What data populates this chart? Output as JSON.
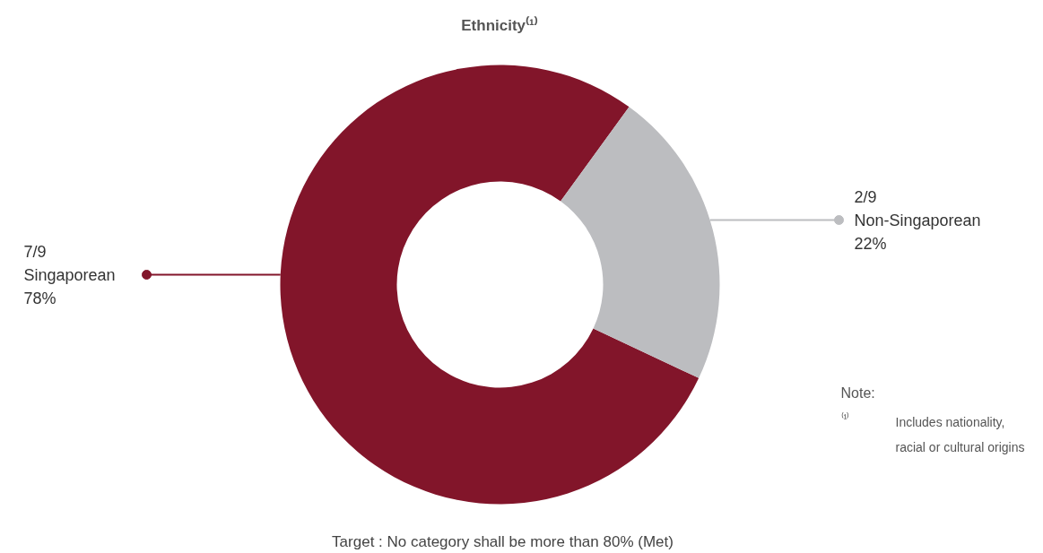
{
  "chart_data": {
    "type": "donut",
    "title": "Ethnicity⁽¹⁾",
    "categories": [
      "Singaporean",
      "Non-Singaporean"
    ],
    "values": [
      78,
      22
    ],
    "value_labels": [
      "78%",
      "22%"
    ],
    "colors": [
      "#82152a",
      "#bcbdc0"
    ],
    "annotations": [
      {
        "text": "7/9",
        "x": "Singaporean"
      },
      {
        "text": "2/9",
        "x": "Non-Singaporean"
      },
      "Target : No category shall be more than 80% (Met)",
      "Note:",
      "⁽¹⁾",
      "Includes nationality,",
      "racial or cultural origins"
    ]
  }
}
